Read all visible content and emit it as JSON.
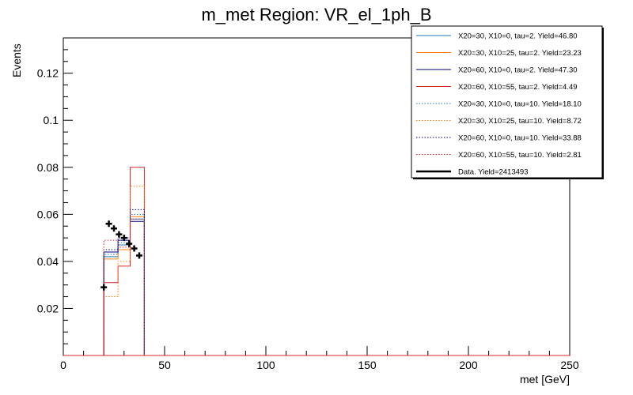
{
  "chart_data": {
    "type": "histogram",
    "title": "m_met Region: VR_el_1ph_B",
    "xlabel": "met [GeV]",
    "ylabel": "Events",
    "xlim": [
      0,
      250
    ],
    "ylim": [
      0,
      0.135
    ],
    "x_ticks": [
      0,
      50,
      100,
      150,
      200,
      250
    ],
    "x_tick_labels": [
      "0",
      "50",
      "100",
      "150",
      "200",
      "250"
    ],
    "y_ticks": [
      0.02,
      0.04,
      0.06,
      0.08,
      0.1,
      0.12
    ],
    "y_tick_labels": [
      "0.02",
      "0.04",
      "0.06",
      "0.08",
      "0.1",
      "0.12"
    ],
    "bin_edges": [
      20,
      27,
      33,
      40
    ],
    "legend_position": "top-right",
    "series": [
      {
        "name": "X20=30, X10=0, tau=2. Yield=46.80",
        "color": "#1f77b4",
        "style": "solid",
        "values": [
          0.042,
          0.047,
          0.058
        ]
      },
      {
        "name": "X20=30, X10=25, tau=2. Yield=23.23",
        "color": "#ff7f0e",
        "style": "solid",
        "values": [
          0.041,
          0.045,
          0.059
        ]
      },
      {
        "name": "X20=60, X10=0, tau=2. Yield=47.30",
        "color": "#000080",
        "style": "solid",
        "values": [
          0.044,
          0.049,
          0.057
        ]
      },
      {
        "name": "X20=60, X10=55, tau=2. Yield=4.49",
        "color": "#d62728",
        "style": "solid",
        "values": [
          0.031,
          0.038,
          0.08
        ]
      },
      {
        "name": "X20=30, X10=0, tau=10. Yield=18.10",
        "color": "#1f77b4",
        "style": "dotted",
        "values": [
          0.043,
          0.048,
          0.06
        ]
      },
      {
        "name": "X20=30, X10=25, tau=10. Yield=8.72",
        "color": "#ff7f0e",
        "style": "dotted",
        "values": [
          0.025,
          0.04,
          0.072
        ]
      },
      {
        "name": "X20=60, X10=0, tau=10. Yield=33.88",
        "color": "#000080",
        "style": "dotted",
        "values": [
          0.045,
          0.05,
          0.062
        ]
      },
      {
        "name": "X20=60, X10=55, tau=10. Yield=2.81",
        "color": "#d62728",
        "style": "dotted",
        "values": [
          0.049,
          0.046,
          0.058
        ]
      }
    ],
    "data": {
      "name": "Data. Yield=2413493",
      "color": "#000000",
      "x": [
        20,
        22.5,
        25,
        27.5,
        30,
        32.5,
        35,
        37.5
      ],
      "y": [
        0.029,
        0.056,
        0.054,
        0.0515,
        0.05,
        0.0475,
        0.0455,
        0.0425
      ]
    }
  }
}
